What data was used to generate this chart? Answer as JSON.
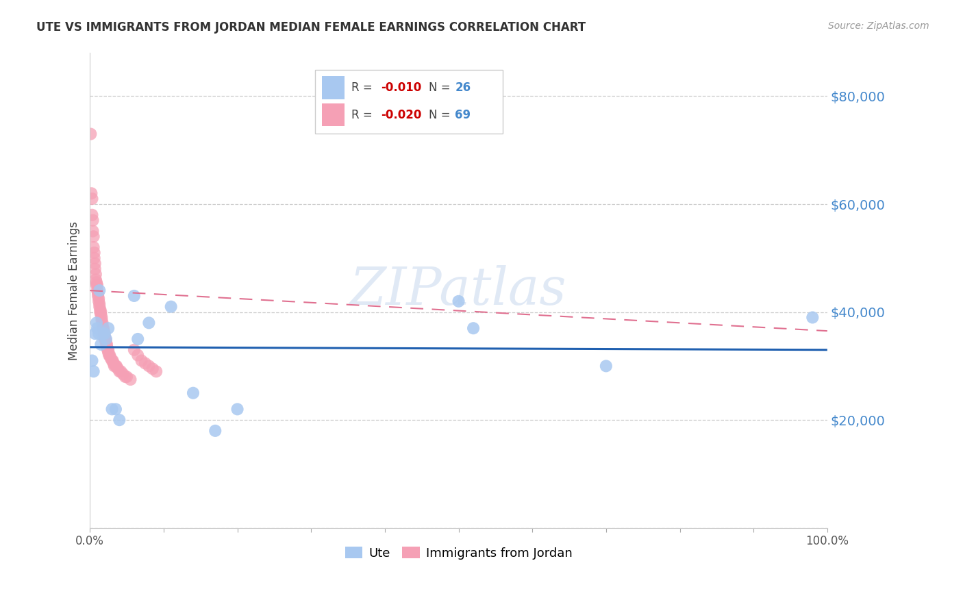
{
  "title": "UTE VS IMMIGRANTS FROM JORDAN MEDIAN FEMALE EARNINGS CORRELATION CHART",
  "source": "Source: ZipAtlas.com",
  "ylabel": "Median Female Earnings",
  "yticks": [
    0,
    20000,
    40000,
    60000,
    80000
  ],
  "ytick_labels": [
    "",
    "$20,000",
    "$40,000",
    "$60,000",
    "$80,000"
  ],
  "xlim": [
    0.0,
    1.0
  ],
  "ylim": [
    0,
    88000
  ],
  "background_color": "#ffffff",
  "grid_color": "#cccccc",
  "ute_color": "#a8c8f0",
  "jordan_color": "#f5a0b5",
  "ute_line_color": "#2060b0",
  "jordan_line_color": "#e07090",
  "watermark": "ZIPatlas",
  "ute_scatter_x": [
    0.003,
    0.005,
    0.007,
    0.009,
    0.01,
    0.012,
    0.013,
    0.015,
    0.017,
    0.02,
    0.022,
    0.025,
    0.03,
    0.035,
    0.04,
    0.06,
    0.065,
    0.08,
    0.11,
    0.14,
    0.17,
    0.2,
    0.5,
    0.52,
    0.7,
    0.98
  ],
  "ute_scatter_y": [
    31000,
    29000,
    36000,
    38000,
    37000,
    36000,
    44000,
    34000,
    36000,
    36000,
    35000,
    37000,
    22000,
    22000,
    20000,
    43000,
    35000,
    38000,
    41000,
    25000,
    18000,
    22000,
    42000,
    37000,
    30000,
    39000
  ],
  "jordan_scatter_x": [
    0.001,
    0.002,
    0.003,
    0.003,
    0.004,
    0.004,
    0.005,
    0.005,
    0.006,
    0.006,
    0.007,
    0.007,
    0.008,
    0.008,
    0.009,
    0.009,
    0.01,
    0.01,
    0.011,
    0.011,
    0.012,
    0.012,
    0.013,
    0.013,
    0.014,
    0.014,
    0.015,
    0.015,
    0.016,
    0.016,
    0.017,
    0.017,
    0.018,
    0.018,
    0.019,
    0.019,
    0.02,
    0.02,
    0.021,
    0.022,
    0.022,
    0.023,
    0.023,
    0.024,
    0.025,
    0.025,
    0.026,
    0.027,
    0.028,
    0.03,
    0.031,
    0.032,
    0.033,
    0.035,
    0.036,
    0.038,
    0.04,
    0.042,
    0.045,
    0.048,
    0.05,
    0.055,
    0.06,
    0.065,
    0.07,
    0.075,
    0.08,
    0.085,
    0.09
  ],
  "jordan_scatter_y": [
    73000,
    62000,
    61000,
    58000,
    57000,
    55000,
    54000,
    52000,
    51000,
    50000,
    49000,
    48000,
    47000,
    46000,
    45500,
    45000,
    45000,
    44000,
    43500,
    43000,
    42500,
    42000,
    41500,
    41000,
    40500,
    40000,
    40000,
    39500,
    39000,
    38500,
    38000,
    37500,
    37000,
    37000,
    36500,
    36000,
    35500,
    35000,
    35000,
    34500,
    34000,
    34000,
    33500,
    33000,
    33000,
    32500,
    32000,
    32000,
    31500,
    31000,
    31000,
    30500,
    30000,
    30000,
    30000,
    29500,
    29000,
    29000,
    28500,
    28000,
    28000,
    27500,
    33000,
    32000,
    31000,
    30500,
    30000,
    29500,
    29000
  ],
  "ute_trend_x": [
    0.0,
    1.0
  ],
  "ute_trend_y": [
    33500,
    33000
  ],
  "jordan_trend_x": [
    0.0,
    1.0
  ],
  "jordan_trend_y": [
    44000,
    36500
  ]
}
